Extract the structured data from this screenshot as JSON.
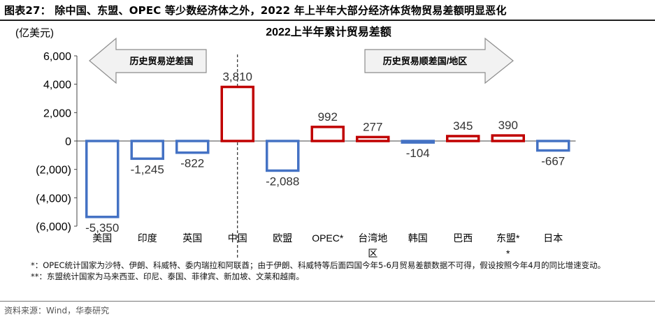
{
  "figure_title": "图表27： 除中国、东盟、OPEC 等少数经济体之外，2022 年上半年大部分经济体货物贸易差额明显恶化",
  "notes": [
    "*：OPEC统计国家为沙特、伊朗、科威特、委内瑞拉和阿联酋；由于伊朗、科威特等后面四国今年5-6月贸易差额数据不可得，假设按照今年4月的同比增速变动。",
    "**：东盟统计国家为马来西亚、印尼、泰国、菲律宾、新加坡、文莱和越南。"
  ],
  "source": "资料来源：Wind，华泰研究",
  "colors": {
    "negative": "#4472C4",
    "positive": "#C00000",
    "arrow_fill": "#F2F2F2",
    "arrow_stroke": "#8C8C8C"
  },
  "chart_data": {
    "type": "bar",
    "title": "2022上半年累计贸易差额",
    "ylabel": "(亿美元)",
    "ylim": [
      -6000,
      6000
    ],
    "yticks": [
      6000,
      4000,
      2000,
      0,
      -2000,
      -4000,
      -6000
    ],
    "ytick_labels": [
      "6,000",
      "4,000",
      "2,000",
      "0",
      "(2,000)",
      "(4,000)",
      "(6,000)"
    ],
    "categories": [
      "美国",
      "印度",
      "英国",
      "中国",
      "欧盟",
      "OPEC*",
      "台湾地区",
      "韩国",
      "巴西",
      "东盟**",
      "日本"
    ],
    "values": [
      -5350,
      -1245,
      -822,
      3810,
      -2088,
      992,
      277,
      -104,
      345,
      390,
      -667
    ],
    "data_labels": [
      "-5,350",
      "-1,245",
      "-822",
      "3,810",
      "-2,088",
      "992",
      "277",
      "-104",
      "345",
      "390",
      "-667"
    ],
    "left_group_label": "历史贸易逆差国",
    "right_group_label": "历史贸易顺差国/地区",
    "divider_after_category": "英国",
    "grid": false,
    "legend": "none"
  }
}
